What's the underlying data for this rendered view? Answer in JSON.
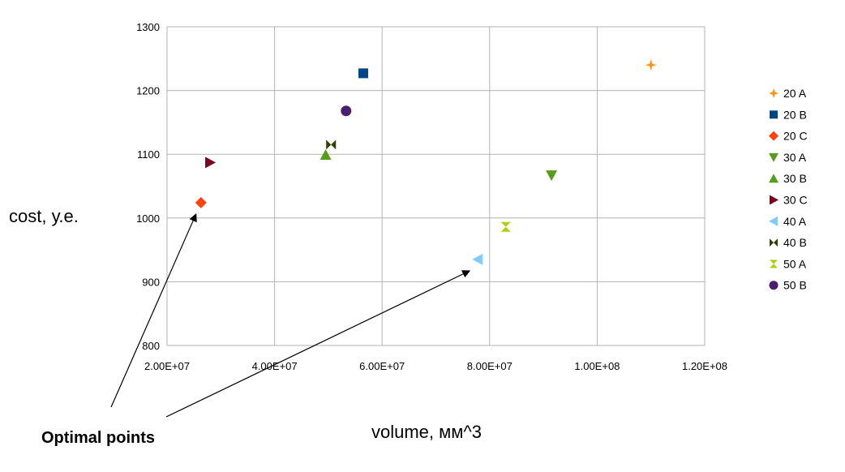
{
  "chart_data": {
    "type": "scatter",
    "title": "",
    "xlabel": "volume, мм^3",
    "ylabel": "cost, у.е.",
    "xlim": [
      20000000,
      120000000
    ],
    "ylim": [
      800,
      1300
    ],
    "x_ticks": [
      20000000,
      40000000,
      60000000,
      80000000,
      100000000,
      120000000
    ],
    "x_tick_labels": [
      "2.00E+07",
      "4.00E+07",
      "6.00E+07",
      "8.00E+07",
      "1.00E+08",
      "1.20E+08"
    ],
    "y_ticks": [
      800,
      900,
      1000,
      1100,
      1200,
      1300
    ],
    "y_tick_labels": [
      "800",
      "900",
      "1000",
      "1100",
      "1200",
      "1300"
    ],
    "grid": true,
    "legend_position": "right",
    "series": [
      {
        "name": "20 A",
        "marker": "plus",
        "color": "#ff950e",
        "x": [
          110000000
        ],
        "y": [
          1240
        ]
      },
      {
        "name": "20 B",
        "marker": "square",
        "color": "#004586",
        "x": [
          56500000
        ],
        "y": [
          1227
        ]
      },
      {
        "name": "20 C",
        "marker": "diamond",
        "color": "#ff420e",
        "x": [
          26300000
        ],
        "y": [
          1024
        ]
      },
      {
        "name": "30 A",
        "marker": "triangle-down",
        "color": "#579d1c",
        "x": [
          91500000
        ],
        "y": [
          1067
        ]
      },
      {
        "name": "30 B",
        "marker": "triangle-up",
        "color": "#579d1c",
        "x": [
          49500000
        ],
        "y": [
          1099
        ]
      },
      {
        "name": "30 C",
        "marker": "triangle-right",
        "color": "#7e0021",
        "x": [
          28000000
        ],
        "y": [
          1087
        ]
      },
      {
        "name": "40 A",
        "marker": "triangle-left",
        "color": "#83caff",
        "x": [
          77800000
        ],
        "y": [
          935
        ]
      },
      {
        "name": "40 B",
        "marker": "bowtie",
        "color": "#314004",
        "x": [
          50500000
        ],
        "y": [
          1115
        ]
      },
      {
        "name": "50 A",
        "marker": "hourglass",
        "color": "#aecf00",
        "x": [
          83000000
        ],
        "y": [
          986
        ]
      },
      {
        "name": "50 B",
        "marker": "circle",
        "color": "#4b1f6f",
        "x": [
          53300000
        ],
        "y": [
          1168
        ]
      }
    ],
    "annotation": {
      "text": "Optimal points",
      "targets": [
        {
          "x": 26300000,
          "y": 1024
        },
        {
          "x": 77800000,
          "y": 935
        }
      ]
    }
  }
}
